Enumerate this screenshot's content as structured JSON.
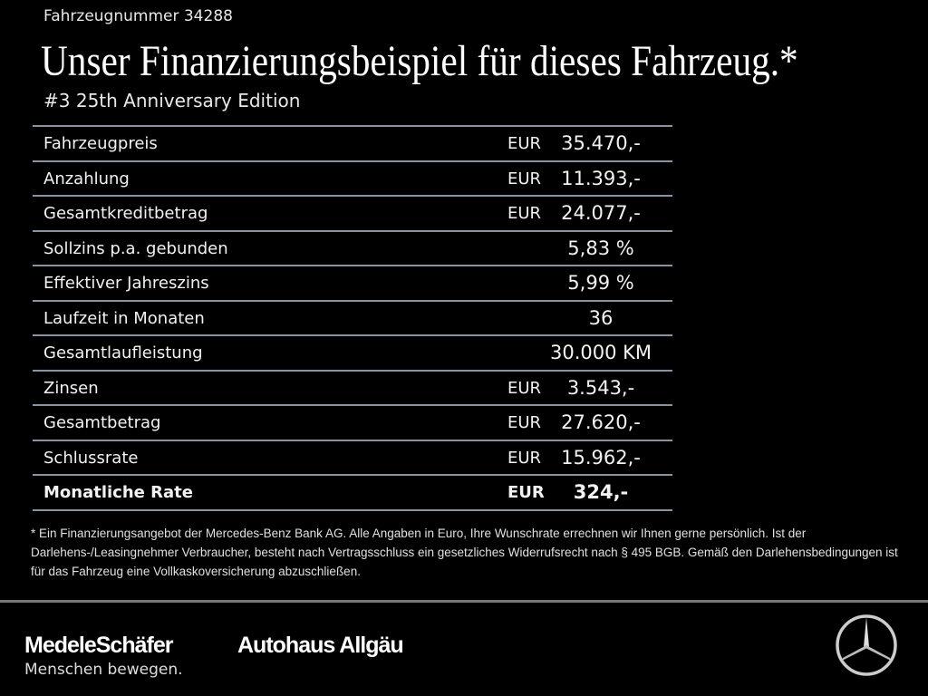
{
  "vehicle_number": "Fahrzeugnummer 34288",
  "title": "Unser Finanzierungsbeispiel für dieses Fahrzeug.*",
  "subtitle": "#3 25th Anniversary Edition",
  "rows": [
    {
      "label": "Fahrzeugpreis",
      "currency": "EUR",
      "value": "35.470,-"
    },
    {
      "label": "Anzahlung",
      "currency": "EUR",
      "value": "11.393,-"
    },
    {
      "label": "Gesamtkreditbetrag",
      "currency": "EUR",
      "value": "24.077,-"
    },
    {
      "label": "Sollzins p.a. gebunden",
      "currency": "",
      "value": "5,83 %"
    },
    {
      "label": "Effektiver Jahreszins",
      "currency": "",
      "value": "5,99 %"
    },
    {
      "label": "Laufzeit in Monaten",
      "currency": "",
      "value": "36"
    },
    {
      "label": "Gesamtlaufleistung",
      "currency": "",
      "value": "30.000 KM"
    },
    {
      "label": "Zinsen",
      "currency": "EUR",
      "value": "3.543,-"
    },
    {
      "label": "Gesamtbetrag",
      "currency": "EUR",
      "value": "27.620,-"
    },
    {
      "label": "Schlussrate",
      "currency": "EUR",
      "value": "15.962,-"
    },
    {
      "label": "Monatliche Rate",
      "currency": "EUR",
      "value": "324,-"
    }
  ],
  "footnote": "* Ein Finanzierungsangebot der Mercedes-Benz Bank AG. Alle Angaben in Euro, Ihre Wunschrate errechnen wir Ihnen gerne persönlich. Ist der Darlehens-/Leasingnehmer Verbraucher, besteht nach Vertragsschluss ein gesetzliches Widerrufsrecht nach § 495 BGB. Gemäß den Darlehensbedingungen ist für das Fahrzeug eine Vollkaskoversicherung abzuschließen.",
  "footer": {
    "logo1": "MedeleSchäfer",
    "logo2": "Autohaus Allgäu",
    "slogan": "Menschen bewegen.",
    "brand_icon": "mercedes-star-icon"
  }
}
